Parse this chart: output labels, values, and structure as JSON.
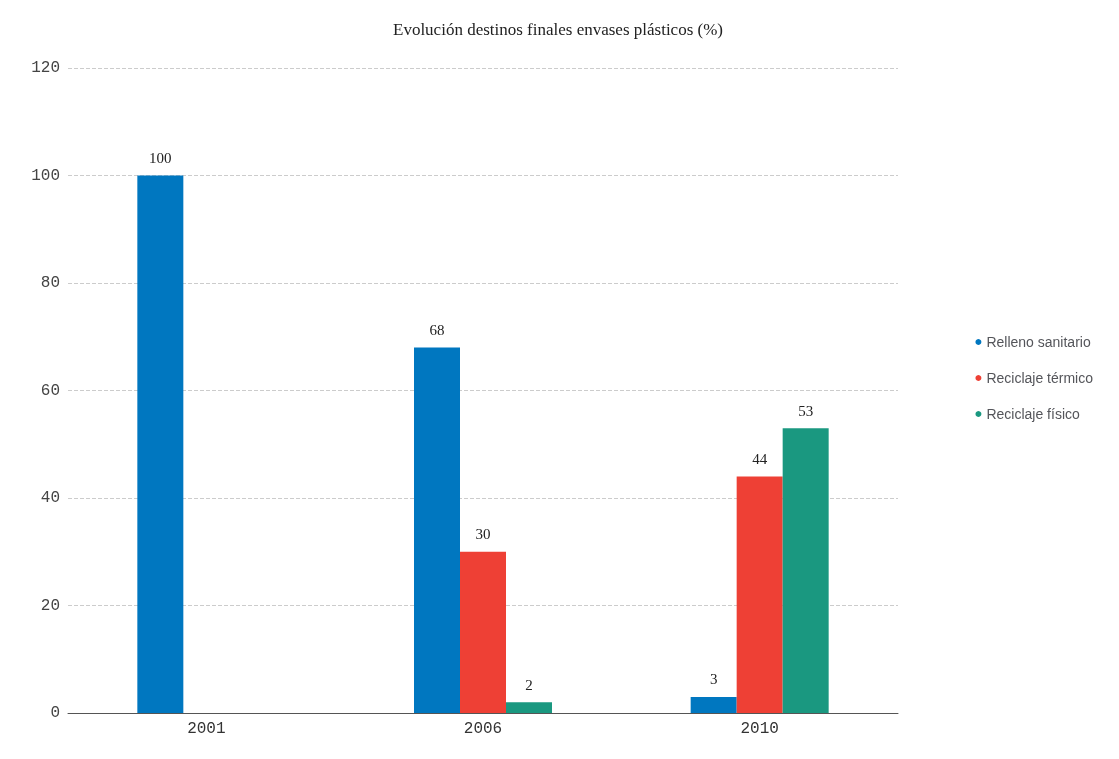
{
  "chart_data": {
    "type": "bar",
    "title": "Evolución destinos finales envases plásticos (%)",
    "categories": [
      "2001",
      "2006",
      "2010"
    ],
    "series": [
      {
        "name": "Relleno sanitario",
        "color": "#0077c0",
        "values": [
          100,
          68,
          3
        ]
      },
      {
        "name": "Reciclaje térmico",
        "color": "#ee4035",
        "values": [
          null,
          30,
          44
        ]
      },
      {
        "name": "Reciclaje físico",
        "color": "#1a9880",
        "values": [
          null,
          2,
          53
        ]
      }
    ],
    "ylim": [
      0,
      120
    ],
    "yticks": [
      0,
      20,
      40,
      60,
      80,
      100,
      120
    ],
    "grid": "y",
    "legend": "right",
    "data_labels": true
  }
}
